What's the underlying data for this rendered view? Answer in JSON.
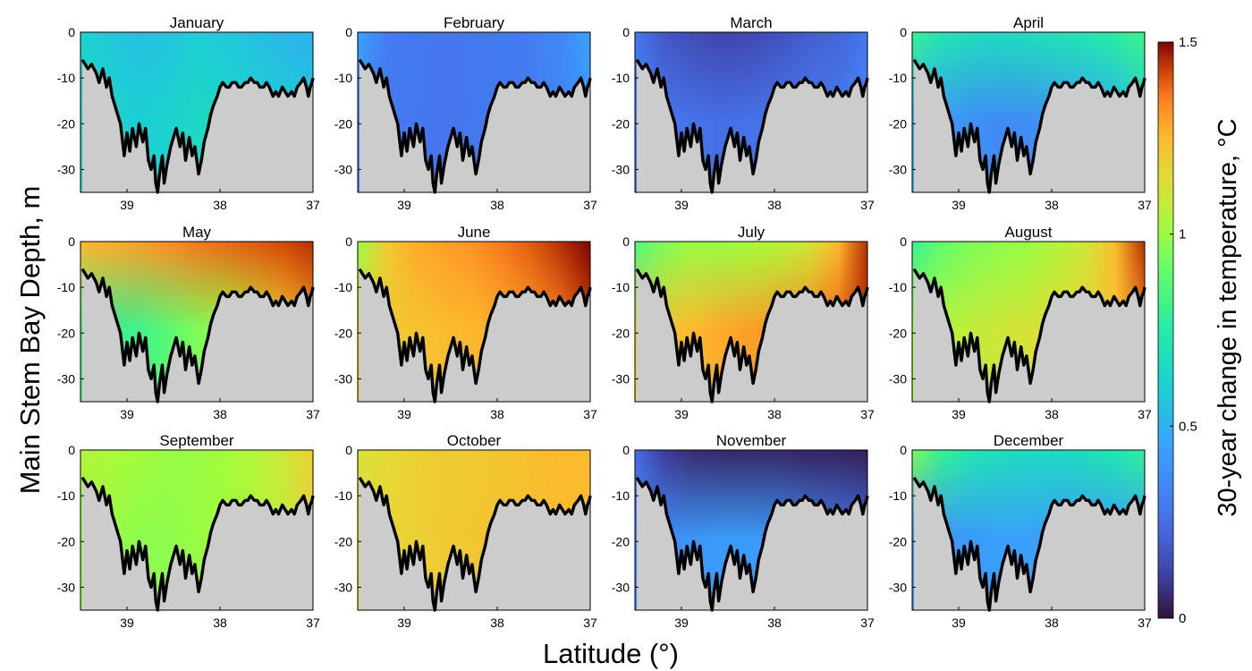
{
  "chart_data": {
    "type": "heatmap",
    "panels": [
      {
        "title": "January",
        "surface": [
          0.62,
          0.58,
          0.55,
          0.56,
          0.6,
          0.58,
          0.55,
          0.52,
          0.5
        ],
        "bottom": [
          0.66,
          0.63,
          0.6,
          0.62,
          0.65,
          0.64,
          0.62,
          0.6,
          0.58
        ]
      },
      {
        "title": "February",
        "surface": [
          0.45,
          0.3,
          0.28,
          0.27,
          0.28,
          0.29,
          0.3,
          0.35,
          0.45
        ],
        "bottom": [
          0.34,
          0.3,
          0.28,
          0.27,
          0.28,
          0.29,
          0.3,
          0.33,
          0.4
        ]
      },
      {
        "title": "March",
        "surface": [
          0.28,
          0.18,
          0.14,
          0.12,
          0.13,
          0.16,
          0.2,
          0.22,
          0.28
        ],
        "bottom": [
          0.32,
          0.28,
          0.26,
          0.25,
          0.26,
          0.27,
          0.29,
          0.3,
          0.33
        ]
      },
      {
        "title": "April",
        "surface": [
          0.8,
          0.72,
          0.68,
          0.66,
          0.68,
          0.7,
          0.72,
          0.76,
          0.82
        ],
        "bottom": [
          0.5,
          0.42,
          0.38,
          0.36,
          0.37,
          0.4,
          0.44,
          0.5,
          0.6
        ]
      },
      {
        "title": "May",
        "surface": [
          1.25,
          1.28,
          1.3,
          1.33,
          1.36,
          1.38,
          1.4,
          1.42,
          1.45
        ],
        "bottom": [
          0.82,
          0.8,
          0.82,
          0.88,
          0.95,
          1.0,
          1.08,
          1.2,
          1.3
        ]
      },
      {
        "title": "June",
        "surface": [
          1.0,
          1.2,
          1.28,
          1.3,
          1.32,
          1.36,
          1.4,
          1.45,
          1.5
        ],
        "bottom": [
          1.18,
          1.2,
          1.22,
          1.24,
          1.26,
          1.28,
          1.3,
          1.35,
          1.42
        ]
      },
      {
        "title": "July",
        "surface": [
          0.85,
          0.95,
          1.0,
          1.0,
          1.02,
          1.05,
          1.1,
          1.25,
          1.45
        ],
        "bottom": [
          1.18,
          1.22,
          1.25,
          1.28,
          1.3,
          1.32,
          1.34,
          1.38,
          1.45
        ]
      },
      {
        "title": "August",
        "surface": [
          0.8,
          0.9,
          0.95,
          0.98,
          1.0,
          1.05,
          1.1,
          1.25,
          1.45
        ],
        "bottom": [
          1.0,
          1.05,
          1.08,
          1.1,
          1.12,
          1.15,
          1.18,
          1.22,
          1.35
        ]
      },
      {
        "title": "September",
        "surface": [
          1.05,
          1.04,
          1.02,
          1.0,
          1.0,
          1.02,
          1.05,
          1.1,
          1.18
        ],
        "bottom": [
          1.0,
          1.0,
          0.98,
          0.98,
          1.0,
          1.02,
          1.04,
          1.08,
          1.2
        ]
      },
      {
        "title": "October",
        "surface": [
          1.12,
          1.15,
          1.18,
          1.2,
          1.2,
          1.22,
          1.24,
          1.25,
          1.25
        ],
        "bottom": [
          1.15,
          1.16,
          1.18,
          1.2,
          1.21,
          1.22,
          1.23,
          1.24,
          1.25
        ]
      },
      {
        "title": "November",
        "surface": [
          0.25,
          0.1,
          0.06,
          0.05,
          0.05,
          0.05,
          0.04,
          0.04,
          0.03
        ],
        "bottom": [
          0.32,
          0.36,
          0.4,
          0.42,
          0.42,
          0.4,
          0.36,
          0.3,
          0.25
        ]
      },
      {
        "title": "December",
        "surface": [
          0.95,
          0.8,
          0.72,
          0.68,
          0.66,
          0.66,
          0.68,
          0.72,
          0.78
        ],
        "bottom": [
          0.38,
          0.4,
          0.42,
          0.44,
          0.44,
          0.43,
          0.42,
          0.42,
          0.46
        ]
      }
    ],
    "bathymetry": {
      "lat": [
        39.48,
        39.42,
        39.38,
        39.33,
        39.3,
        39.26,
        39.22,
        39.19,
        39.16,
        39.13,
        39.1,
        39.07,
        39.03,
        39.0,
        38.97,
        38.94,
        38.9,
        38.87,
        38.83,
        38.8,
        38.77,
        38.74,
        38.71,
        38.69,
        38.67,
        38.65,
        38.62,
        38.6,
        38.57,
        38.53,
        38.5,
        38.47,
        38.43,
        38.4,
        38.37,
        38.33,
        38.3,
        38.27,
        38.23,
        38.2,
        38.17,
        38.13,
        38.1,
        38.07,
        38.03,
        38.0,
        37.97,
        37.93,
        37.9,
        37.87,
        37.83,
        37.8,
        37.77,
        37.73,
        37.7,
        37.67,
        37.63,
        37.6,
        37.57,
        37.53,
        37.5,
        37.47,
        37.43,
        37.4,
        37.37,
        37.33,
        37.3,
        37.27,
        37.23,
        37.2,
        37.17,
        37.13,
        37.1,
        37.07,
        37.05,
        37.03,
        37.01,
        37.0
      ],
      "depth": [
        -6,
        -8,
        -7,
        -9,
        -11,
        -8,
        -12,
        -10,
        -14,
        -16,
        -18,
        -20,
        -27,
        -22,
        -26,
        -21,
        -25,
        -20,
        -24,
        -21,
        -28,
        -30,
        -27,
        -33,
        -35,
        -31,
        -27,
        -33,
        -29,
        -25,
        -23,
        -21,
        -25,
        -22,
        -28,
        -23,
        -27,
        -25,
        -31,
        -28,
        -24,
        -21,
        -18,
        -16,
        -14,
        -12,
        -11,
        -12,
        -12,
        -11,
        -11,
        -12,
        -12,
        -11,
        -11,
        -10,
        -11,
        -11,
        -12,
        -12,
        -11,
        -12,
        -14,
        -13,
        -14,
        -12,
        -13,
        -14,
        -13,
        -14,
        -12,
        -11,
        -10,
        -12,
        -14,
        -12,
        -11,
        -10
      ]
    },
    "xlabel": "Latitude (°)",
    "ylabel": "Main Stem Bay Depth, m",
    "xticks": [
      39,
      38,
      37
    ],
    "xlim": [
      39.5,
      37.0
    ],
    "yticks": [
      0,
      -10,
      -20,
      -30
    ],
    "ylim": [
      -35,
      0
    ],
    "colorbar": {
      "label": "30-year change in temperature, °C",
      "ticks": [
        0,
        0.5,
        1,
        1.5
      ],
      "tick_labels": [
        "0",
        "0.5",
        "1",
        "1.5"
      ],
      "range": [
        0,
        1.5
      ],
      "colormap": "turbo"
    },
    "land_color": "#cccccc",
    "grid": false
  }
}
